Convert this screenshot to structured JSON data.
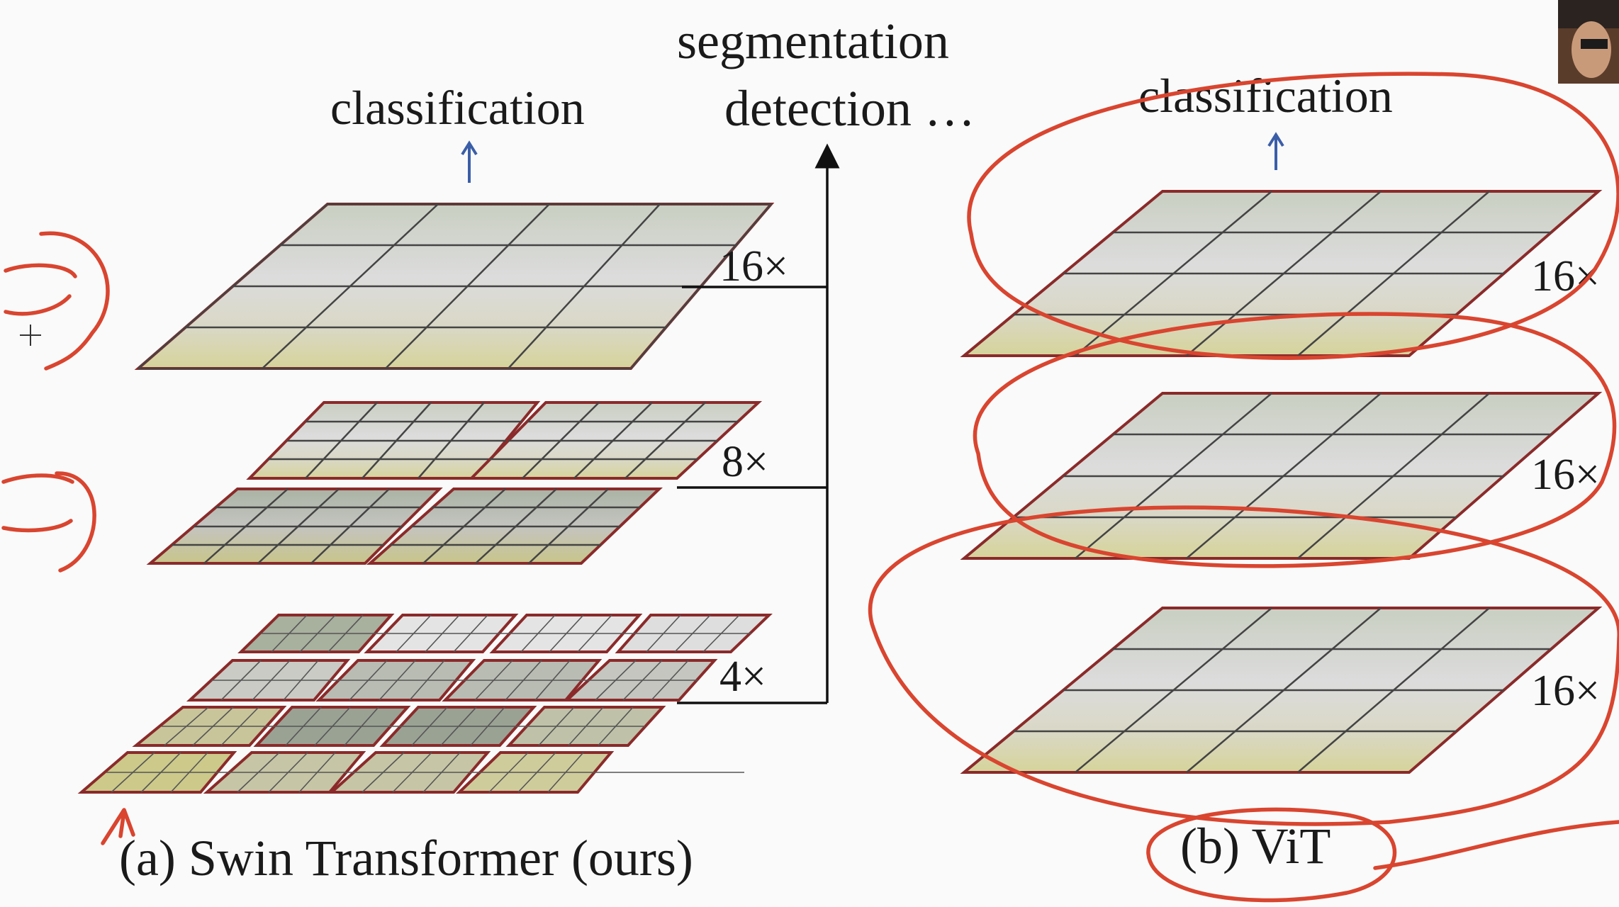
{
  "swin": {
    "classification_label": "classification",
    "segmentation_label": "segmentation",
    "detection_label": "detection …",
    "scale_16": "16×",
    "scale_8": "8×",
    "scale_4": "4×",
    "caption": "(a) Swin Transformer (ours)"
  },
  "vit": {
    "classification_label": "classification",
    "scale_top": "16×",
    "scale_mid": "16×",
    "scale_bot": "16×",
    "caption": "(b) ViT"
  },
  "colors": {
    "panel_border": "#8b2a2a",
    "annotation_red": "#d9452f",
    "arrow_blue": "#3b5ea8"
  }
}
